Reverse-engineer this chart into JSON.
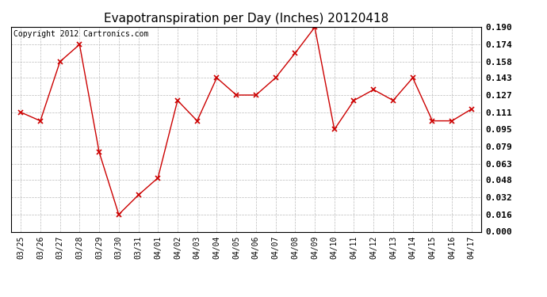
{
  "title": "Evapotranspiration per Day (Inches) 20120418",
  "copyright": "Copyright 2012 Cartronics.com",
  "labels": [
    "03/25",
    "03/26",
    "03/27",
    "03/28",
    "03/29",
    "03/30",
    "03/31",
    "04/01",
    "04/02",
    "04/03",
    "04/04",
    "04/05",
    "04/06",
    "04/07",
    "04/08",
    "04/09",
    "04/10",
    "04/11",
    "04/12",
    "04/13",
    "04/14",
    "04/15",
    "04/16",
    "04/17"
  ],
  "values": [
    0.111,
    0.103,
    0.158,
    0.174,
    0.074,
    0.016,
    0.034,
    0.05,
    0.122,
    0.103,
    0.143,
    0.127,
    0.127,
    0.143,
    0.166,
    0.19,
    0.095,
    0.122,
    0.132,
    0.122,
    0.143,
    0.103,
    0.103,
    0.114
  ],
  "line_color": "#cc0000",
  "marker": "x",
  "marker_size": 4,
  "ylim": [
    0.0,
    0.19
  ],
  "yticks": [
    0.0,
    0.016,
    0.032,
    0.048,
    0.063,
    0.079,
    0.095,
    0.111,
    0.127,
    0.143,
    0.158,
    0.174,
    0.19
  ],
  "bg_color": "#ffffff",
  "grid_color": "#bbbbbb",
  "title_fontsize": 11,
  "copyright_fontsize": 7,
  "tick_fontsize": 8,
  "xtick_fontsize": 7
}
